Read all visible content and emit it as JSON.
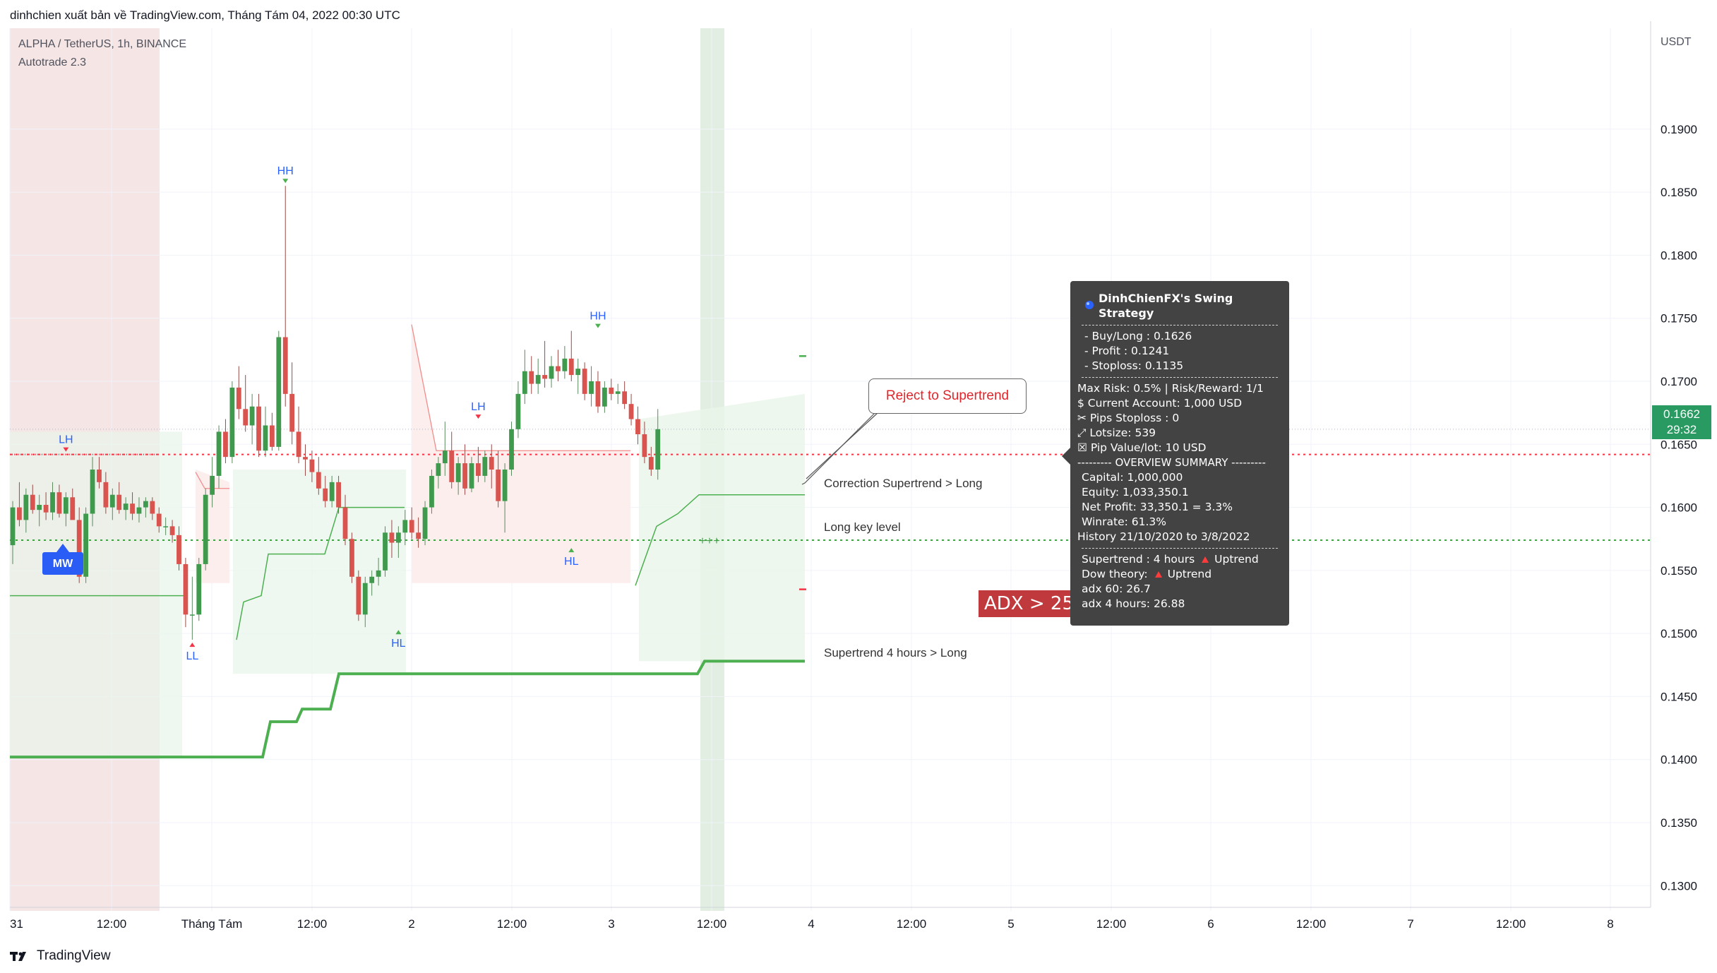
{
  "header": {
    "attribution": "dinhchien xuất bản về TradingView.com, Tháng Tám 04, 2022 00:30 UTC",
    "symbol": "ALPHA / TetherUS, 1h, BINANCE",
    "indicator": "Autotrade 2.3"
  },
  "footer": {
    "brand": "TradingView"
  },
  "price_axis": {
    "currency": "USDT",
    "current_price": "0.1662",
    "countdown": "29:32"
  },
  "tooltip": {
    "title": "DinhChienFX's Swing Strategy",
    "buy_long": "- Buy/Long   : 0.1626",
    "profit": "- Profit  : 0.1241",
    "stoploss": "- Stoploss: 0.1135",
    "max_risk": "Max Risk: 0.5% | Risk/Reward: 1/1",
    "current_account": "$ Current Account: 1,000 USD",
    "pips_stoploss": "✂ Pips Stoploss : 0",
    "lotsize": "⤢ Lotsize: 539",
    "pip_value": "☒ Pip Value/lot: 10 USD",
    "overview_header": "--------- OVERVIEW SUMMARY ---------",
    "capital": "Capital: 1,000,000",
    "equity": "Equity: 1,033,350.1",
    "net_profit": "Net Profit: 33,350.1 = 3.3%",
    "winrate": "Winrate: 61.3%",
    "history": "History 21/10/2020 to 3/8/2022",
    "supertrend_label": "Supertrend : 4 hours",
    "supertrend_value": "Uptrend",
    "dow_label": "Dow theory:",
    "dow_value": "Uptrend",
    "adx60": "adx 60: 26.7",
    "adx4h": "adx 4 hours: 26.88"
  },
  "annotations": {
    "adx": "ADX > 25",
    "reject": "Reject to Supertrend",
    "correction": "Correction Supertrend  > Long",
    "long_key": "Long key level",
    "supertrend_4h": "Supertrend 4 hours > Long",
    "mw": "MW"
  },
  "colors": {
    "up": "#26a69a",
    "up_candle": "#3f9a4d",
    "down": "#d9534f",
    "supertrend": "#4caf50",
    "red_dotted": "#f23645",
    "green_dotted": "#43a047"
  },
  "chart_data": {
    "type": "candlestick",
    "title": "ALPHA / TetherUS, 1h, BINANCE",
    "yaxis_unit": "USDT",
    "ylim": [
      0.128,
      0.198
    ],
    "y_ticks": [
      "0.1900",
      "0.1850",
      "0.1800",
      "0.1750",
      "0.1700",
      "0.1650",
      "0.1600",
      "0.1550",
      "0.1500",
      "0.1450",
      "0.1400",
      "0.1350",
      "0.1300"
    ],
    "x_ticks": [
      "31",
      "12:00",
      "Tháng Tám",
      "12:00",
      "2",
      "12:00",
      "3",
      "12:00",
      "4",
      "12:00",
      "5",
      "12:00",
      "6",
      "12:00",
      "7",
      "12:00",
      "8"
    ],
    "candles": [
      {
        "o": 0.157,
        "h": 0.1605,
        "l": 0.1555,
        "c": 0.16
      },
      {
        "o": 0.16,
        "h": 0.162,
        "l": 0.1585,
        "c": 0.159
      },
      {
        "o": 0.159,
        "h": 0.1615,
        "l": 0.158,
        "c": 0.161
      },
      {
        "o": 0.161,
        "h": 0.1618,
        "l": 0.1595,
        "c": 0.1598
      },
      {
        "o": 0.1598,
        "h": 0.161,
        "l": 0.1585,
        "c": 0.1602
      },
      {
        "o": 0.1602,
        "h": 0.1612,
        "l": 0.159,
        "c": 0.1596
      },
      {
        "o": 0.1596,
        "h": 0.162,
        "l": 0.159,
        "c": 0.1612
      },
      {
        "o": 0.1612,
        "h": 0.1618,
        "l": 0.1592,
        "c": 0.1595
      },
      {
        "o": 0.1595,
        "h": 0.1612,
        "l": 0.1585,
        "c": 0.1608
      },
      {
        "o": 0.1608,
        "h": 0.1615,
        "l": 0.1592,
        "c": 0.159
      },
      {
        "o": 0.159,
        "h": 0.16,
        "l": 0.154,
        "c": 0.1545
      },
      {
        "o": 0.1545,
        "h": 0.16,
        "l": 0.154,
        "c": 0.1595
      },
      {
        "o": 0.1595,
        "h": 0.164,
        "l": 0.1585,
        "c": 0.163
      },
      {
        "o": 0.163,
        "h": 0.164,
        "l": 0.1615,
        "c": 0.162
      },
      {
        "o": 0.162,
        "h": 0.1628,
        "l": 0.1595,
        "c": 0.16
      },
      {
        "o": 0.16,
        "h": 0.1615,
        "l": 0.159,
        "c": 0.161
      },
      {
        "o": 0.161,
        "h": 0.162,
        "l": 0.1595,
        "c": 0.1598
      },
      {
        "o": 0.1598,
        "h": 0.1608,
        "l": 0.159,
        "c": 0.1603
      },
      {
        "o": 0.1603,
        "h": 0.1612,
        "l": 0.159,
        "c": 0.1595
      },
      {
        "o": 0.1595,
        "h": 0.1608,
        "l": 0.1588,
        "c": 0.16
      },
      {
        "o": 0.16,
        "h": 0.1608,
        "l": 0.1592,
        "c": 0.1605
      },
      {
        "o": 0.1605,
        "h": 0.1608,
        "l": 0.159,
        "c": 0.1595
      },
      {
        "o": 0.1595,
        "h": 0.16,
        "l": 0.158,
        "c": 0.1585
      },
      {
        "o": 0.1585,
        "h": 0.1592,
        "l": 0.1578,
        "c": 0.1585
      },
      {
        "o": 0.1585,
        "h": 0.159,
        "l": 0.1572,
        "c": 0.1578
      },
      {
        "o": 0.1578,
        "h": 0.1585,
        "l": 0.155,
        "c": 0.1555
      },
      {
        "o": 0.1555,
        "h": 0.156,
        "l": 0.1505,
        "c": 0.1515
      },
      {
        "o": 0.1515,
        "h": 0.1545,
        "l": 0.1495,
        "c": 0.1515
      },
      {
        "o": 0.1515,
        "h": 0.156,
        "l": 0.151,
        "c": 0.1555
      },
      {
        "o": 0.1555,
        "h": 0.1615,
        "l": 0.155,
        "c": 0.161
      },
      {
        "o": 0.161,
        "h": 0.164,
        "l": 0.16,
        "c": 0.1625
      },
      {
        "o": 0.1625,
        "h": 0.1665,
        "l": 0.1615,
        "c": 0.166
      },
      {
        "o": 0.166,
        "h": 0.167,
        "l": 0.1635,
        "c": 0.164
      },
      {
        "o": 0.164,
        "h": 0.17,
        "l": 0.1635,
        "c": 0.1695
      },
      {
        "o": 0.1695,
        "h": 0.1712,
        "l": 0.167,
        "c": 0.1678
      },
      {
        "o": 0.1678,
        "h": 0.1705,
        "l": 0.166,
        "c": 0.1665
      },
      {
        "o": 0.1665,
        "h": 0.169,
        "l": 0.165,
        "c": 0.168
      },
      {
        "o": 0.168,
        "h": 0.169,
        "l": 0.164,
        "c": 0.1645
      },
      {
        "o": 0.1645,
        "h": 0.168,
        "l": 0.164,
        "c": 0.1665
      },
      {
        "o": 0.1665,
        "h": 0.1675,
        "l": 0.1645,
        "c": 0.1648
      },
      {
        "o": 0.1648,
        "h": 0.174,
        "l": 0.1645,
        "c": 0.1735
      },
      {
        "o": 0.1735,
        "h": 0.1855,
        "l": 0.168,
        "c": 0.169
      },
      {
        "o": 0.169,
        "h": 0.1715,
        "l": 0.165,
        "c": 0.166
      },
      {
        "o": 0.166,
        "h": 0.168,
        "l": 0.1635,
        "c": 0.164
      },
      {
        "o": 0.164,
        "h": 0.165,
        "l": 0.1625,
        "c": 0.1638
      },
      {
        "o": 0.1638,
        "h": 0.1645,
        "l": 0.162,
        "c": 0.1628
      },
      {
        "o": 0.1628,
        "h": 0.164,
        "l": 0.161,
        "c": 0.1615
      },
      {
        "o": 0.1615,
        "h": 0.1625,
        "l": 0.16,
        "c": 0.1605
      },
      {
        "o": 0.1605,
        "h": 0.1625,
        "l": 0.16,
        "c": 0.162
      },
      {
        "o": 0.162,
        "h": 0.1625,
        "l": 0.1595,
        "c": 0.16
      },
      {
        "o": 0.16,
        "h": 0.161,
        "l": 0.157,
        "c": 0.1575
      },
      {
        "o": 0.1575,
        "h": 0.158,
        "l": 0.154,
        "c": 0.1545
      },
      {
        "o": 0.1545,
        "h": 0.155,
        "l": 0.151,
        "c": 0.1515
      },
      {
        "o": 0.1515,
        "h": 0.1545,
        "l": 0.1505,
        "c": 0.154
      },
      {
        "o": 0.154,
        "h": 0.155,
        "l": 0.153,
        "c": 0.1545
      },
      {
        "o": 0.1545,
        "h": 0.156,
        "l": 0.1538,
        "c": 0.155
      },
      {
        "o": 0.155,
        "h": 0.1585,
        "l": 0.1545,
        "c": 0.158
      },
      {
        "o": 0.158,
        "h": 0.159,
        "l": 0.156,
        "c": 0.1572
      },
      {
        "o": 0.1572,
        "h": 0.1585,
        "l": 0.156,
        "c": 0.158
      },
      {
        "o": 0.158,
        "h": 0.1598,
        "l": 0.157,
        "c": 0.159
      },
      {
        "o": 0.159,
        "h": 0.16,
        "l": 0.1575,
        "c": 0.158
      },
      {
        "o": 0.158,
        "h": 0.1592,
        "l": 0.1568,
        "c": 0.1575
      },
      {
        "o": 0.1575,
        "h": 0.1605,
        "l": 0.157,
        "c": 0.16
      },
      {
        "o": 0.16,
        "h": 0.163,
        "l": 0.1595,
        "c": 0.1625
      },
      {
        "o": 0.1625,
        "h": 0.164,
        "l": 0.1615,
        "c": 0.1635
      },
      {
        "o": 0.1635,
        "h": 0.1668,
        "l": 0.1625,
        "c": 0.1645
      },
      {
        "o": 0.1645,
        "h": 0.166,
        "l": 0.1615,
        "c": 0.162
      },
      {
        "o": 0.162,
        "h": 0.164,
        "l": 0.161,
        "c": 0.1635
      },
      {
        "o": 0.1635,
        "h": 0.165,
        "l": 0.161,
        "c": 0.1615
      },
      {
        "o": 0.1615,
        "h": 0.164,
        "l": 0.1612,
        "c": 0.1635
      },
      {
        "o": 0.1635,
        "h": 0.1648,
        "l": 0.162,
        "c": 0.1625
      },
      {
        "o": 0.1625,
        "h": 0.1645,
        "l": 0.162,
        "c": 0.164
      },
      {
        "o": 0.164,
        "h": 0.165,
        "l": 0.1615,
        "c": 0.163
      },
      {
        "o": 0.163,
        "h": 0.1645,
        "l": 0.16,
        "c": 0.1605
      },
      {
        "o": 0.1605,
        "h": 0.1635,
        "l": 0.158,
        "c": 0.163
      },
      {
        "o": 0.163,
        "h": 0.1668,
        "l": 0.1625,
        "c": 0.1662
      },
      {
        "o": 0.1662,
        "h": 0.17,
        "l": 0.1655,
        "c": 0.169
      },
      {
        "o": 0.169,
        "h": 0.1725,
        "l": 0.1682,
        "c": 0.1708
      },
      {
        "o": 0.1708,
        "h": 0.172,
        "l": 0.169,
        "c": 0.1698
      },
      {
        "o": 0.1698,
        "h": 0.1718,
        "l": 0.169,
        "c": 0.1705
      },
      {
        "o": 0.1705,
        "h": 0.1732,
        "l": 0.1695,
        "c": 0.1702
      },
      {
        "o": 0.1702,
        "h": 0.172,
        "l": 0.1695,
        "c": 0.1712
      },
      {
        "o": 0.1712,
        "h": 0.1725,
        "l": 0.17,
        "c": 0.1708
      },
      {
        "o": 0.1708,
        "h": 0.1728,
        "l": 0.1702,
        "c": 0.1718
      },
      {
        "o": 0.1718,
        "h": 0.174,
        "l": 0.17,
        "c": 0.1705
      },
      {
        "o": 0.1705,
        "h": 0.1718,
        "l": 0.169,
        "c": 0.171
      },
      {
        "o": 0.171,
        "h": 0.1715,
        "l": 0.1685,
        "c": 0.169
      },
      {
        "o": 0.169,
        "h": 0.1712,
        "l": 0.168,
        "c": 0.17
      },
      {
        "o": 0.17,
        "h": 0.1708,
        "l": 0.1675,
        "c": 0.168
      },
      {
        "o": 0.168,
        "h": 0.17,
        "l": 0.1675,
        "c": 0.1695
      },
      {
        "o": 0.1695,
        "h": 0.1702,
        "l": 0.1685,
        "c": 0.169
      },
      {
        "o": 0.169,
        "h": 0.1698,
        "l": 0.1682,
        "c": 0.1692
      },
      {
        "o": 0.1692,
        "h": 0.17,
        "l": 0.1678,
        "c": 0.1682
      },
      {
        "o": 0.1682,
        "h": 0.169,
        "l": 0.1665,
        "c": 0.167
      },
      {
        "o": 0.167,
        "h": 0.168,
        "l": 0.165,
        "c": 0.1658
      },
      {
        "o": 0.1658,
        "h": 0.1668,
        "l": 0.1635,
        "c": 0.164
      },
      {
        "o": 0.164,
        "h": 0.1648,
        "l": 0.1625,
        "c": 0.163
      },
      {
        "o": 0.163,
        "h": 0.1678,
        "l": 0.1622,
        "c": 0.1662
      }
    ],
    "markers": [
      {
        "label": "LH",
        "price": 0.1642,
        "pos": "above"
      },
      {
        "label": "LL",
        "price": 0.1495,
        "pos": "below"
      },
      {
        "label": "HH",
        "price": 0.1855,
        "pos": "above"
      },
      {
        "label": "HL",
        "price": 0.1505,
        "pos": "below"
      },
      {
        "label": "LH",
        "price": 0.1668,
        "pos": "above"
      },
      {
        "label": "HL",
        "price": 0.157,
        "pos": "below"
      },
      {
        "label": "HH",
        "price": 0.174,
        "pos": "above"
      }
    ],
    "levels": {
      "red_dotted": 0.1642,
      "green_dotted": 0.1574,
      "current_price_line": 0.1662,
      "take_profit_mark": 0.172,
      "stop_mark": 0.1535
    },
    "supertrend_4h": [
      0.1402,
      0.1402,
      0.143,
      0.144,
      0.1468,
      0.1468,
      0.1478
    ],
    "grid": true,
    "legend": "none"
  }
}
